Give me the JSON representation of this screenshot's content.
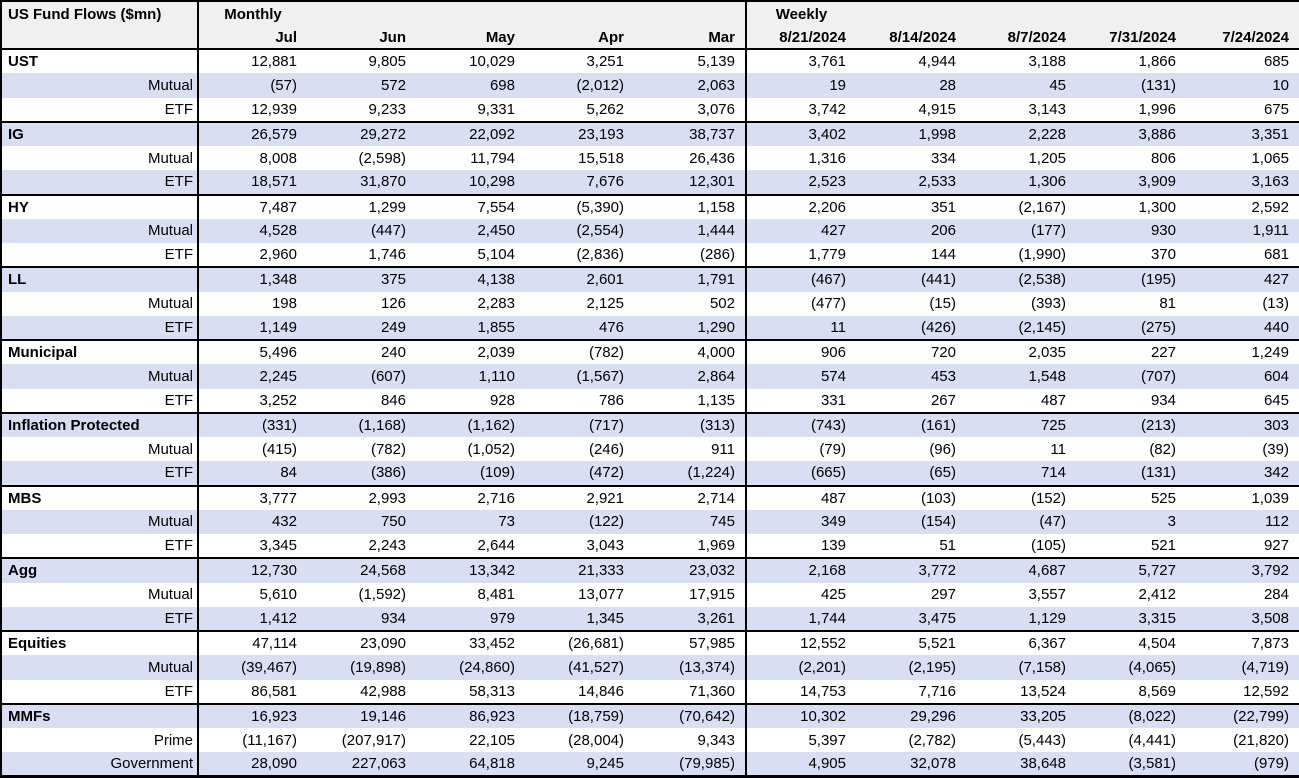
{
  "title": "US Fund Flows ($mn)",
  "sections": {
    "monthly": {
      "label": "Monthly",
      "columns": [
        "Jul",
        "Jun",
        "May",
        "Apr",
        "Mar"
      ]
    },
    "weekly": {
      "label": "Weekly",
      "columns": [
        "8/21/2024",
        "8/14/2024",
        "8/7/2024",
        "7/31/2024",
        "7/24/2024"
      ]
    }
  },
  "groups": [
    {
      "name": "UST",
      "rows": [
        {
          "label": "UST",
          "monthly": [
            "12,881",
            "9,805",
            "10,029",
            "3,251",
            "5,139"
          ],
          "weekly": [
            "3,761",
            "4,944",
            "3,188",
            "1,866",
            "685"
          ]
        },
        {
          "label": "Mutual",
          "monthly": [
            "(57)",
            "572",
            "698",
            "(2,012)",
            "2,063"
          ],
          "weekly": [
            "19",
            "28",
            "45",
            "(131)",
            "10"
          ]
        },
        {
          "label": "ETF",
          "monthly": [
            "12,939",
            "9,233",
            "9,331",
            "5,262",
            "3,076"
          ],
          "weekly": [
            "3,742",
            "4,915",
            "3,143",
            "1,996",
            "675"
          ]
        }
      ]
    },
    {
      "name": "IG",
      "rows": [
        {
          "label": "IG",
          "monthly": [
            "26,579",
            "29,272",
            "22,092",
            "23,193",
            "38,737"
          ],
          "weekly": [
            "3,402",
            "1,998",
            "2,228",
            "3,886",
            "3,351"
          ]
        },
        {
          "label": "Mutual",
          "monthly": [
            "8,008",
            "(2,598)",
            "11,794",
            "15,518",
            "26,436"
          ],
          "weekly": [
            "1,316",
            "334",
            "1,205",
            "806",
            "1,065"
          ]
        },
        {
          "label": "ETF",
          "monthly": [
            "18,571",
            "31,870",
            "10,298",
            "7,676",
            "12,301"
          ],
          "weekly": [
            "2,523",
            "2,533",
            "1,306",
            "3,909",
            "3,163"
          ]
        }
      ]
    },
    {
      "name": "HY",
      "rows": [
        {
          "label": "HY",
          "monthly": [
            "7,487",
            "1,299",
            "7,554",
            "(5,390)",
            "1,158"
          ],
          "weekly": [
            "2,206",
            "351",
            "(2,167)",
            "1,300",
            "2,592"
          ]
        },
        {
          "label": "Mutual",
          "monthly": [
            "4,528",
            "(447)",
            "2,450",
            "(2,554)",
            "1,444"
          ],
          "weekly": [
            "427",
            "206",
            "(177)",
            "930",
            "1,911"
          ]
        },
        {
          "label": "ETF",
          "monthly": [
            "2,960",
            "1,746",
            "5,104",
            "(2,836)",
            "(286)"
          ],
          "weekly": [
            "1,779",
            "144",
            "(1,990)",
            "370",
            "681"
          ]
        }
      ]
    },
    {
      "name": "LL",
      "rows": [
        {
          "label": "LL",
          "monthly": [
            "1,348",
            "375",
            "4,138",
            "2,601",
            "1,791"
          ],
          "weekly": [
            "(467)",
            "(441)",
            "(2,538)",
            "(195)",
            "427"
          ]
        },
        {
          "label": "Mutual",
          "monthly": [
            "198",
            "126",
            "2,283",
            "2,125",
            "502"
          ],
          "weekly": [
            "(477)",
            "(15)",
            "(393)",
            "81",
            "(13)"
          ]
        },
        {
          "label": "ETF",
          "monthly": [
            "1,149",
            "249",
            "1,855",
            "476",
            "1,290"
          ],
          "weekly": [
            "11",
            "(426)",
            "(2,145)",
            "(275)",
            "440"
          ]
        }
      ]
    },
    {
      "name": "Municipal",
      "rows": [
        {
          "label": "Municipal",
          "monthly": [
            "5,496",
            "240",
            "2,039",
            "(782)",
            "4,000"
          ],
          "weekly": [
            "906",
            "720",
            "2,035",
            "227",
            "1,249"
          ]
        },
        {
          "label": "Mutual",
          "monthly": [
            "2,245",
            "(607)",
            "1,110",
            "(1,567)",
            "2,864"
          ],
          "weekly": [
            "574",
            "453",
            "1,548",
            "(707)",
            "604"
          ]
        },
        {
          "label": "ETF",
          "monthly": [
            "3,252",
            "846",
            "928",
            "786",
            "1,135"
          ],
          "weekly": [
            "331",
            "267",
            "487",
            "934",
            "645"
          ]
        }
      ]
    },
    {
      "name": "Inflation Protected",
      "rows": [
        {
          "label": "Inflation Protected",
          "monthly": [
            "(331)",
            "(1,168)",
            "(1,162)",
            "(717)",
            "(313)"
          ],
          "weekly": [
            "(743)",
            "(161)",
            "725",
            "(213)",
            "303"
          ]
        },
        {
          "label": "Mutual",
          "monthly": [
            "(415)",
            "(782)",
            "(1,052)",
            "(246)",
            "911"
          ],
          "weekly": [
            "(79)",
            "(96)",
            "11",
            "(82)",
            "(39)"
          ]
        },
        {
          "label": "ETF",
          "monthly": [
            "84",
            "(386)",
            "(109)",
            "(472)",
            "(1,224)"
          ],
          "weekly": [
            "(665)",
            "(65)",
            "714",
            "(131)",
            "342"
          ]
        }
      ]
    },
    {
      "name": "MBS",
      "rows": [
        {
          "label": "MBS",
          "monthly": [
            "3,777",
            "2,993",
            "2,716",
            "2,921",
            "2,714"
          ],
          "weekly": [
            "487",
            "(103)",
            "(152)",
            "525",
            "1,039"
          ]
        },
        {
          "label": "Mutual",
          "monthly": [
            "432",
            "750",
            "73",
            "(122)",
            "745"
          ],
          "weekly": [
            "349",
            "(154)",
            "(47)",
            "3",
            "112"
          ]
        },
        {
          "label": "ETF",
          "monthly": [
            "3,345",
            "2,243",
            "2,644",
            "3,043",
            "1,969"
          ],
          "weekly": [
            "139",
            "51",
            "(105)",
            "521",
            "927"
          ]
        }
      ]
    },
    {
      "name": "Agg",
      "rows": [
        {
          "label": "Agg",
          "monthly": [
            "12,730",
            "24,568",
            "13,342",
            "21,333",
            "23,032"
          ],
          "weekly": [
            "2,168",
            "3,772",
            "4,687",
            "5,727",
            "3,792"
          ]
        },
        {
          "label": "Mutual",
          "monthly": [
            "5,610",
            "(1,592)",
            "8,481",
            "13,077",
            "17,915"
          ],
          "weekly": [
            "425",
            "297",
            "3,557",
            "2,412",
            "284"
          ]
        },
        {
          "label": "ETF",
          "monthly": [
            "1,412",
            "934",
            "979",
            "1,345",
            "3,261"
          ],
          "weekly": [
            "1,744",
            "3,475",
            "1,129",
            "3,315",
            "3,508"
          ]
        }
      ]
    },
    {
      "name": "Equities",
      "rows": [
        {
          "label": "Equities",
          "monthly": [
            "47,114",
            "23,090",
            "33,452",
            "(26,681)",
            "57,985"
          ],
          "weekly": [
            "12,552",
            "5,521",
            "6,367",
            "4,504",
            "7,873"
          ]
        },
        {
          "label": "Mutual",
          "monthly": [
            "(39,467)",
            "(19,898)",
            "(24,860)",
            "(41,527)",
            "(13,374)"
          ],
          "weekly": [
            "(2,201)",
            "(2,195)",
            "(7,158)",
            "(4,065)",
            "(4,719)"
          ]
        },
        {
          "label": "ETF",
          "monthly": [
            "86,581",
            "42,988",
            "58,313",
            "14,846",
            "71,360"
          ],
          "weekly": [
            "14,753",
            "7,716",
            "13,524",
            "8,569",
            "12,592"
          ]
        }
      ]
    },
    {
      "name": "MMFs",
      "rows": [
        {
          "label": "MMFs",
          "monthly": [
            "16,923",
            "19,146",
            "86,923",
            "(18,759)",
            "(70,642)"
          ],
          "weekly": [
            "10,302",
            "29,296",
            "33,205",
            "(8,022)",
            "(22,799)"
          ]
        },
        {
          "label": "Prime",
          "monthly": [
            "(11,167)",
            "(207,917)",
            "22,105",
            "(28,004)",
            "9,343"
          ],
          "weekly": [
            "5,397",
            "(2,782)",
            "(5,443)",
            "(4,441)",
            "(21,820)"
          ]
        },
        {
          "label": "Government",
          "monthly": [
            "28,090",
            "227,063",
            "64,818",
            "9,245",
            "(79,985)"
          ],
          "weekly": [
            "4,905",
            "32,078",
            "38,648",
            "(3,581)",
            "(979)"
          ]
        }
      ]
    }
  ],
  "colors": {
    "stripe": "#D9DFF2",
    "header_bg": "#F0F0F0",
    "border": "#000000",
    "text": "#000000"
  }
}
